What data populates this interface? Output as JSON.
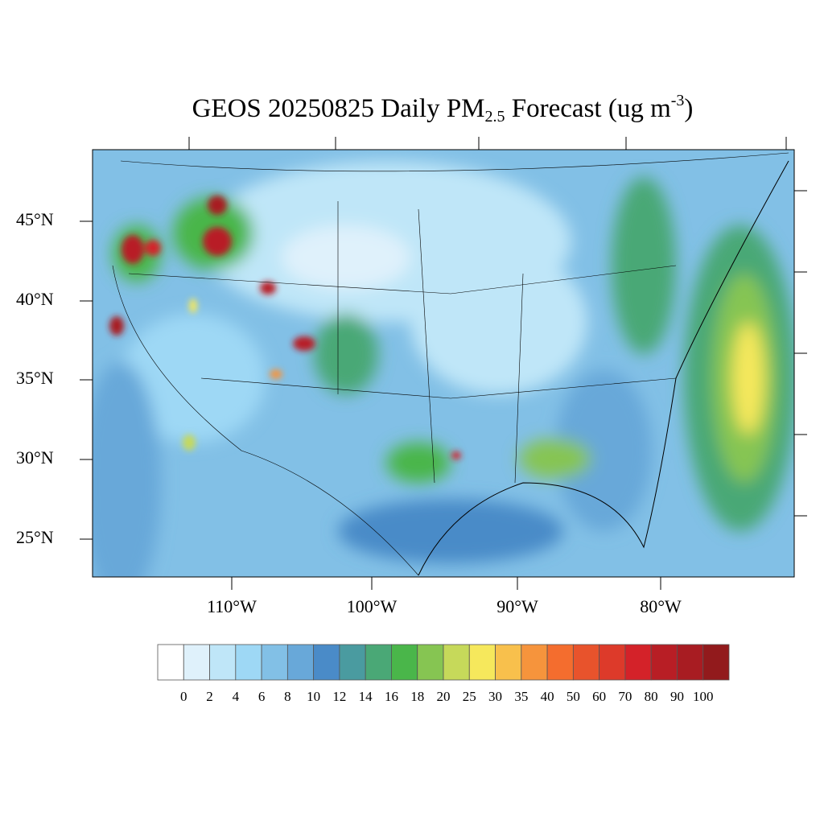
{
  "title": {
    "main": "GEOS 20250825 Daily PM",
    "sub": "2.5",
    "after": " Forecast (ug m",
    "sup": "-3",
    "close": ")"
  },
  "map": {
    "projection": "Lambert conformal (CONUS)",
    "lat_labels": [
      "45°N",
      "40°N",
      "35°N",
      "30°N",
      "25°N"
    ],
    "lon_labels": [
      "110°W",
      "100°W",
      "90°W",
      "80°W"
    ],
    "background_color": "#82c0e6"
  },
  "colorbar": {
    "labels": [
      "0",
      "2",
      "4",
      "6",
      "8",
      "10",
      "12",
      "14",
      "16",
      "18",
      "20",
      "25",
      "30",
      "35",
      "40",
      "50",
      "60",
      "70",
      "80",
      "90",
      "100"
    ],
    "colors": [
      "#ffffff",
      "#dff1fb",
      "#bfe6f8",
      "#9ed8f5",
      "#82c0e6",
      "#68a8d9",
      "#4a8bc8",
      "#4a9ba0",
      "#4aa876",
      "#4ab64a",
      "#86c552",
      "#c6d95a",
      "#f6e85c",
      "#f8c04c",
      "#f6943c",
      "#f46d2e",
      "#e8532c",
      "#dd3a2a",
      "#d42229",
      "#b81e25",
      "#a81c22",
      "#921a1c"
    ]
  }
}
